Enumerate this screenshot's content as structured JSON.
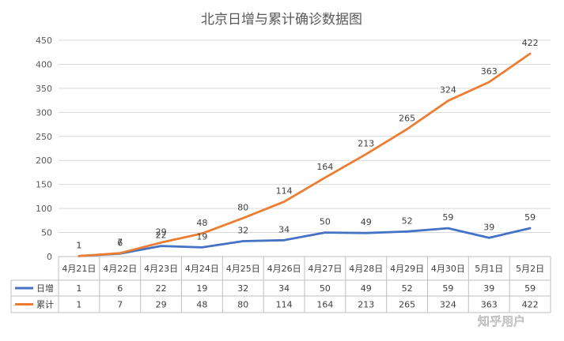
{
  "chart_data": {
    "type": "line",
    "title": "北京日增与累计确诊数据图",
    "categories": [
      "4月21日",
      "4月22日",
      "4月23日",
      "4月24日",
      "4月25日",
      "4月26日",
      "4月27日",
      "4月28日",
      "4月29日",
      "4月30日",
      "5月1日",
      "5月2日"
    ],
    "series": [
      {
        "name": "日增",
        "color": "#4472c4",
        "values": [
          1,
          6,
          22,
          19,
          32,
          34,
          50,
          49,
          52,
          59,
          39,
          59
        ]
      },
      {
        "name": "累计",
        "color": "#ed7d31",
        "values": [
          1,
          7,
          29,
          48,
          80,
          114,
          164,
          213,
          265,
          324,
          363,
          422
        ]
      }
    ],
    "ylim": [
      0,
      450
    ],
    "yticks": [
      0,
      50,
      100,
      150,
      200,
      250,
      300,
      350,
      400,
      450
    ],
    "grid": true,
    "legend": "data-table"
  },
  "watermark": "知乎用户"
}
